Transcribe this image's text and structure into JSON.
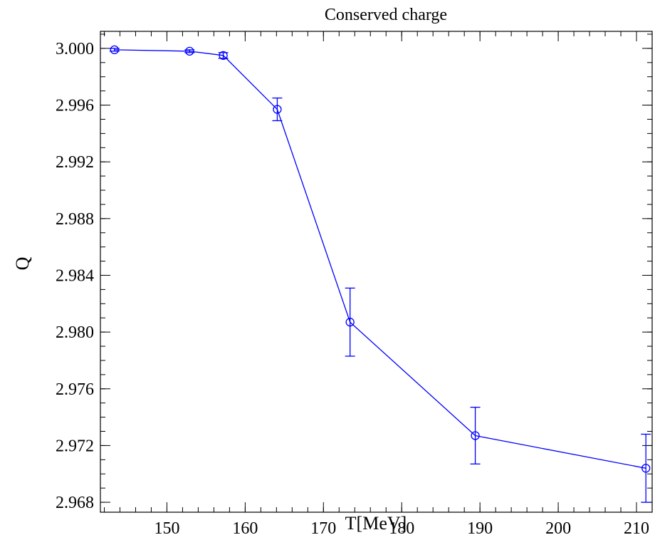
{
  "chart_data": {
    "type": "line",
    "title": "Conserved charge",
    "xlabel": "T[MeV]",
    "ylabel": "Q",
    "xlim": [
      141.5,
      212
    ],
    "ylim": [
      2.9673,
      3.0012
    ],
    "grid": false,
    "legend": "none",
    "x_ticks": [
      150,
      160,
      170,
      180,
      190,
      200,
      210
    ],
    "y_ticks": [
      2.968,
      2.972,
      2.976,
      2.98,
      2.984,
      2.988,
      2.992,
      2.996,
      3.0
    ],
    "x_tick_labels": [
      "150",
      "160",
      "170",
      "180",
      "190",
      "200",
      "210"
    ],
    "y_tick_labels": [
      "2.968",
      "2.972",
      "2.976",
      "2.980",
      "2.984",
      "2.988",
      "2.992",
      "2.996",
      "3.000"
    ],
    "series": [
      {
        "color": "#0000ff",
        "marker": "open-circle",
        "points": [
          {
            "x": 143.3,
            "y": 2.9999,
            "err": 0.0001
          },
          {
            "x": 152.9,
            "y": 2.9998,
            "err": 0.0001
          },
          {
            "x": 157.2,
            "y": 2.9995,
            "err": 0.0002
          },
          {
            "x": 164.1,
            "y": 2.9957,
            "err": 0.0008
          },
          {
            "x": 173.4,
            "y": 2.9807,
            "err": 0.0024
          },
          {
            "x": 189.4,
            "y": 2.9727,
            "err": 0.002
          },
          {
            "x": 211.2,
            "y": 2.9704,
            "err": 0.0024
          }
        ]
      }
    ]
  }
}
